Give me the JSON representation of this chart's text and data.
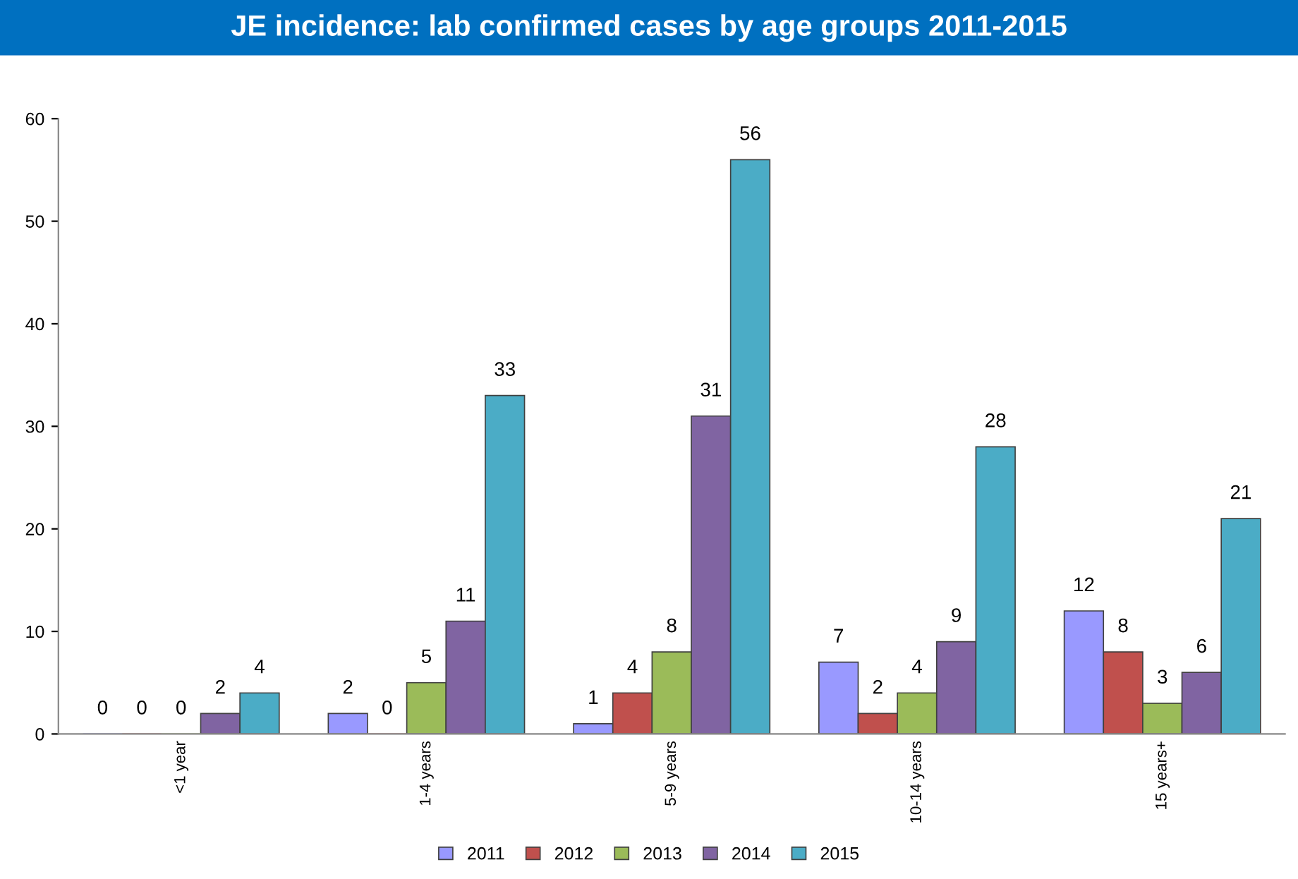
{
  "chart_data": {
    "type": "bar",
    "title": "JE incidence: lab confirmed cases by age groups 2011-2015",
    "categories": [
      "<1 year",
      "1-4 years",
      "5-9 years",
      "10-14 years",
      "15 years+"
    ],
    "series": [
      {
        "name": "2011",
        "color": "#9999ff",
        "values": [
          0,
          2,
          1,
          7,
          12
        ]
      },
      {
        "name": "2012",
        "color": "#c0504d",
        "values": [
          0,
          0,
          4,
          2,
          8
        ]
      },
      {
        "name": "2013",
        "color": "#9bbb59",
        "values": [
          0,
          5,
          8,
          4,
          3
        ]
      },
      {
        "name": "2014",
        "color": "#8064a2",
        "values": [
          2,
          11,
          31,
          9,
          6
        ]
      },
      {
        "name": "2015",
        "color": "#4bacc6",
        "values": [
          4,
          33,
          56,
          28,
          21
        ]
      }
    ],
    "ylim": [
      0,
      60
    ],
    "yticks": [
      0,
      10,
      20,
      30,
      40,
      50,
      60
    ],
    "grid": false,
    "legend": "bottom",
    "data_labels": true
  }
}
